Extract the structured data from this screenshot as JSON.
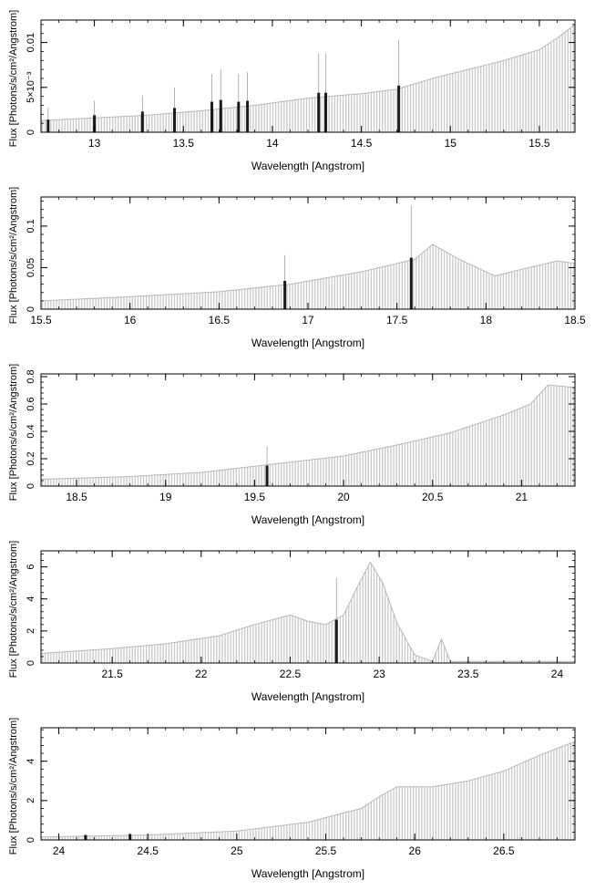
{
  "chart_data": [
    {
      "type": "bar",
      "xlabel": "Wavelength [Angstrom]",
      "ylabel": "Flux [Photons/s/cm²/Angstrom]",
      "xlim": [
        12.7,
        15.7
      ],
      "ylim": [
        0,
        0.0125
      ],
      "xticks": [
        13,
        13.5,
        14,
        14.5,
        15,
        15.5
      ],
      "xtick_labels": [
        "13",
        "13.5",
        "14",
        "14.5",
        "15",
        "15.5"
      ],
      "yticks": [
        0,
        0.005,
        0.01
      ],
      "ytick_labels": [
        "0",
        "5×10⁻³",
        "0.01"
      ],
      "continuum": [
        [
          12.7,
          0.0013
        ],
        [
          13.0,
          0.0016
        ],
        [
          13.3,
          0.0019
        ],
        [
          13.6,
          0.0024
        ],
        [
          13.9,
          0.003
        ],
        [
          14.2,
          0.0038
        ],
        [
          14.5,
          0.0043
        ],
        [
          14.7,
          0.0048
        ],
        [
          14.9,
          0.006
        ],
        [
          15.1,
          0.007
        ],
        [
          15.3,
          0.008
        ],
        [
          15.5,
          0.0092
        ],
        [
          15.6,
          0.0105
        ],
        [
          15.7,
          0.012
        ]
      ],
      "lines": [
        {
          "x": 12.74,
          "y": 0.0014,
          "err": 0.0027
        },
        {
          "x": 13.0,
          "y": 0.0019,
          "err": 0.0035
        },
        {
          "x": 13.27,
          "y": 0.0023,
          "err": 0.0041
        },
        {
          "x": 13.45,
          "y": 0.0027,
          "err": 0.005
        },
        {
          "x": 13.66,
          "y": 0.0034,
          "err": 0.0065
        },
        {
          "x": 13.71,
          "y": 0.0036,
          "err": 0.007
        },
        {
          "x": 13.81,
          "y": 0.0034,
          "err": 0.0065
        },
        {
          "x": 13.86,
          "y": 0.0035,
          "err": 0.0067
        },
        {
          "x": 14.26,
          "y": 0.0044,
          "err": 0.0088
        },
        {
          "x": 14.3,
          "y": 0.0044,
          "err": 0.0088
        },
        {
          "x": 14.71,
          "y": 0.0052,
          "err": 0.0103
        }
      ]
    },
    {
      "type": "bar",
      "xlabel": "Wavelength [Angstrom]",
      "ylabel": "Flux [Photons/s/cm²/Angstrom]",
      "xlim": [
        15.5,
        18.5
      ],
      "ylim": [
        0,
        0.135
      ],
      "xticks": [
        15.5,
        16,
        16.5,
        17,
        17.5,
        18,
        18.5
      ],
      "xtick_labels": [
        "15.5",
        "16",
        "16.5",
        "17",
        "17.5",
        "18",
        "18.5"
      ],
      "yticks": [
        0,
        0.05,
        0.1
      ],
      "ytick_labels": [
        "0",
        "0.05",
        "0.1"
      ],
      "continuum": [
        [
          15.5,
          0.01
        ],
        [
          16.0,
          0.015
        ],
        [
          16.5,
          0.021
        ],
        [
          16.9,
          0.03
        ],
        [
          17.3,
          0.045
        ],
        [
          17.6,
          0.06
        ],
        [
          17.7,
          0.078
        ],
        [
          17.85,
          0.06
        ],
        [
          18.0,
          0.045
        ],
        [
          18.05,
          0.04
        ],
        [
          18.2,
          0.048
        ],
        [
          18.4,
          0.058
        ],
        [
          18.5,
          0.055
        ]
      ],
      "lines": [
        {
          "x": 16.87,
          "y": 0.034,
          "err": 0.065
        },
        {
          "x": 17.58,
          "y": 0.062,
          "err": 0.125
        }
      ]
    },
    {
      "type": "bar",
      "xlabel": "Wavelength [Angstrom]",
      "ylabel": "Flux [Photons/s/cm²/Angstrom]",
      "xlim": [
        18.3,
        21.3
      ],
      "ylim": [
        0,
        0.82
      ],
      "xticks": [
        18.5,
        19,
        19.5,
        20,
        20.5,
        21
      ],
      "xtick_labels": [
        "18.5",
        "19",
        "19.5",
        "20",
        "20.5",
        "21"
      ],
      "yticks": [
        0,
        0.2,
        0.4,
        0.6,
        0.8
      ],
      "ytick_labels": [
        "0",
        "0.2",
        "0.4",
        "0.6",
        "0.8"
      ],
      "continuum": [
        [
          18.3,
          0.05
        ],
        [
          18.8,
          0.07
        ],
        [
          19.2,
          0.1
        ],
        [
          19.6,
          0.16
        ],
        [
          20.0,
          0.22
        ],
        [
          20.3,
          0.3
        ],
        [
          20.6,
          0.39
        ],
        [
          20.9,
          0.52
        ],
        [
          21.05,
          0.6
        ],
        [
          21.15,
          0.74
        ],
        [
          21.3,
          0.72
        ]
      ],
      "lines": [
        {
          "x": 19.57,
          "y": 0.15,
          "err": 0.29
        }
      ]
    },
    {
      "type": "bar",
      "xlabel": "Wavelength [Angstrom]",
      "ylabel": "Flux [Photons/s/cm²/Angstrom]",
      "xlim": [
        21.1,
        24.1
      ],
      "ylim": [
        0,
        7
      ],
      "xticks": [
        21.5,
        22,
        22.5,
        23,
        23.5,
        24
      ],
      "xtick_labels": [
        "21.5",
        "22",
        "22.5",
        "23",
        "23.5",
        "24"
      ],
      "yticks": [
        0,
        2,
        4,
        6
      ],
      "ytick_labels": [
        "0",
        "2",
        "4",
        "6"
      ],
      "continuum": [
        [
          21.1,
          0.6
        ],
        [
          21.5,
          0.9
        ],
        [
          21.8,
          1.2
        ],
        [
          22.1,
          1.7
        ],
        [
          22.3,
          2.4
        ],
        [
          22.5,
          3.0
        ],
        [
          22.6,
          2.6
        ],
        [
          22.7,
          2.4
        ],
        [
          22.8,
          3.0
        ],
        [
          22.88,
          4.8
        ],
        [
          22.95,
          6.3
        ],
        [
          23.02,
          5.0
        ],
        [
          23.1,
          2.5
        ],
        [
          23.2,
          0.5
        ],
        [
          23.3,
          0.1
        ],
        [
          23.35,
          1.5
        ],
        [
          23.4,
          0.1
        ],
        [
          24.1,
          0.1
        ]
      ],
      "lines": [
        {
          "x": 22.76,
          "y": 2.7,
          "err": 5.3
        }
      ]
    },
    {
      "type": "bar",
      "xlabel": "Wavelength [Angstrom]",
      "ylabel": "Flux [Photons/s/cm²/Angstrom]",
      "xlim": [
        23.9,
        26.9
      ],
      "ylim": [
        0,
        5.7
      ],
      "xticks": [
        24,
        24.5,
        25,
        25.5,
        26,
        26.5
      ],
      "xtick_labels": [
        "24",
        "24.5",
        "25",
        "25.5",
        "26",
        "26.5"
      ],
      "yticks": [
        0,
        2,
        4
      ],
      "ytick_labels": [
        "0",
        "2",
        "4"
      ],
      "continuum": [
        [
          23.9,
          0.15
        ],
        [
          24.5,
          0.25
        ],
        [
          25.0,
          0.45
        ],
        [
          25.4,
          0.9
        ],
        [
          25.7,
          1.6
        ],
        [
          25.8,
          2.2
        ],
        [
          25.9,
          2.7
        ],
        [
          26.1,
          2.7
        ],
        [
          26.3,
          3.0
        ],
        [
          26.5,
          3.5
        ],
        [
          26.7,
          4.3
        ],
        [
          26.9,
          5.0
        ]
      ],
      "lines": [
        {
          "x": 24.15,
          "y": 0.25,
          "err": 0.3
        },
        {
          "x": 24.4,
          "y": 0.3,
          "err": 0.35
        }
      ]
    }
  ]
}
